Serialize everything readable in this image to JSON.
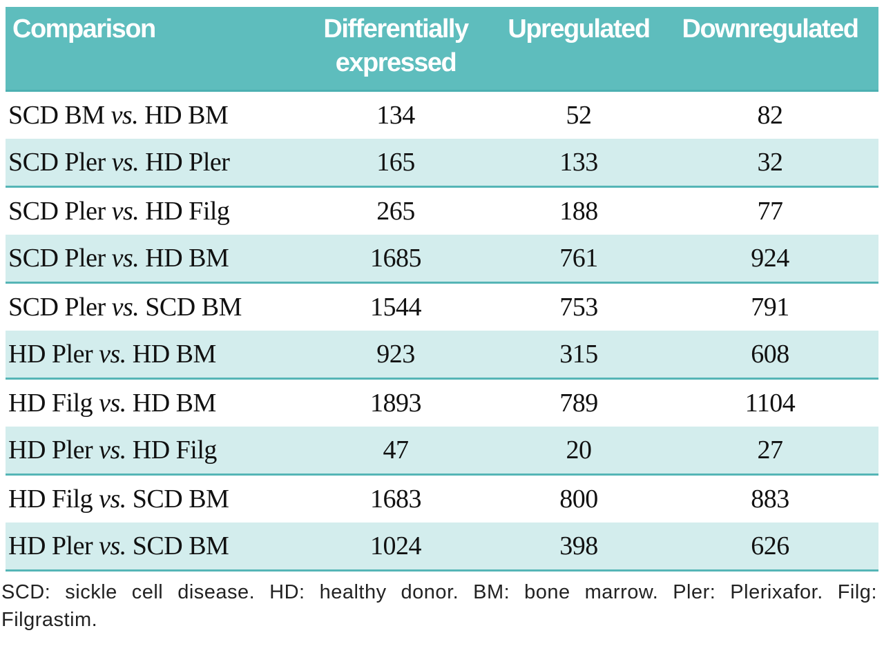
{
  "colors": {
    "header_bg": "#5ebdbd",
    "shaded_row_bg": "#d3eded",
    "divider_teal": "#55b5b6",
    "header_text": "#ffffff",
    "body_text": "#111111"
  },
  "table": {
    "columns": {
      "comparison": "Comparison",
      "differentially_expressed": "Differentially expressed",
      "upregulated": "Upregulated",
      "downregulated": "Downregulated"
    },
    "rows": [
      {
        "a": "SCD BM",
        "vs": "vs.",
        "b": "HD BM",
        "de": "134",
        "up": "52",
        "down": "82"
      },
      {
        "a": "SCD Pler",
        "vs": "vs.",
        "b": "HD Pler",
        "de": "165",
        "up": "133",
        "down": "32"
      },
      {
        "a": "SCD Pler",
        "vs": "vs.",
        "b": "HD Filg",
        "de": "265",
        "up": "188",
        "down": "77"
      },
      {
        "a": "SCD Pler",
        "vs": "vs.",
        "b": "HD BM",
        "de": "1685",
        "up": "761",
        "down": "924"
      },
      {
        "a": "SCD Pler",
        "vs": "vs.",
        "b": "SCD BM",
        "de": "1544",
        "up": "753",
        "down": "791"
      },
      {
        "a": "HD Pler",
        "vs": "vs.",
        "b": "HD BM",
        "de": "923",
        "up": "315",
        "down": "608"
      },
      {
        "a": "HD Filg",
        "vs": "vs.",
        "b": "HD BM",
        "de": "1893",
        "up": "789",
        "down": "1104"
      },
      {
        "a": "HD Pler",
        "vs": "vs.",
        "b": "HD Filg",
        "de": "47",
        "up": "20",
        "down": "27"
      },
      {
        "a": "HD Filg",
        "vs": "vs.",
        "b": "SCD BM",
        "de": "1683",
        "up": "800",
        "down": "883"
      },
      {
        "a": "HD Pler",
        "vs": "vs.",
        "b": "SCD BM",
        "de": "1024",
        "up": "398",
        "down": "626"
      }
    ],
    "footnote": "SCD: sickle cell disease. HD: healthy donor. BM: bone marrow. Pler: Plerixafor. Filg: Filgrastim."
  }
}
